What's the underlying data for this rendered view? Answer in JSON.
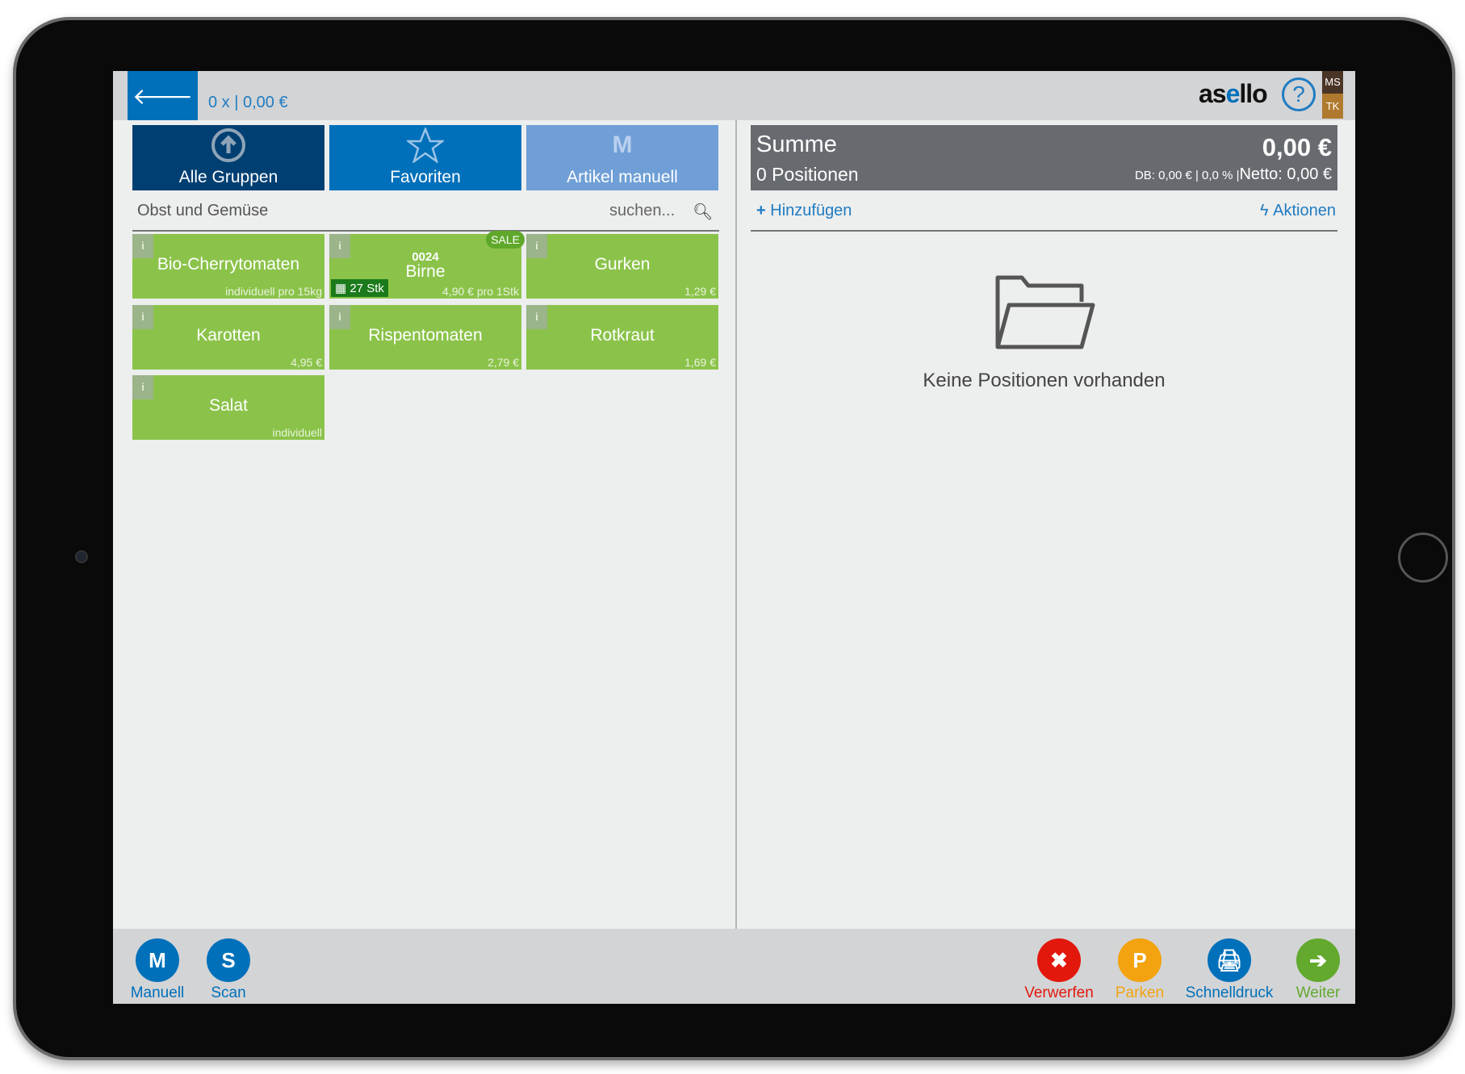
{
  "header": {
    "back_icon": "arrow-left-icon",
    "cart_summary": "0 x | 0,00 €",
    "logo": "asello",
    "help_icon": "question-circle-icon",
    "user_badges": [
      "MS",
      "TK"
    ]
  },
  "tabs": [
    {
      "label": "Alle Gruppen",
      "icon": "arrow-up-circle-icon",
      "color": "#003f72"
    },
    {
      "label": "Favoriten",
      "icon": "star-icon",
      "color": "#0070ba"
    },
    {
      "label": "Artikel manuell",
      "icon": "M",
      "color": "#6f9fd6"
    }
  ],
  "group": {
    "title": "Obst und Gemüse",
    "search_placeholder": "suchen..."
  },
  "products": [
    {
      "name": "Bio-Cherrytomaten",
      "price": "individuell pro 15kg"
    },
    {
      "code": "0024",
      "name": "Birne",
      "price": "4,90 € pro 1Stk",
      "badge": "SALE",
      "stock": "27 Stk"
    },
    {
      "name": "Gurken",
      "price": "1,29 €"
    },
    {
      "name": "Karotten",
      "price": "4,95 €"
    },
    {
      "name": "Rispentomaten",
      "price": "2,79 €"
    },
    {
      "name": "Rotkraut",
      "price": "1,69 €"
    },
    {
      "name": "Salat",
      "price": "individuell"
    }
  ],
  "summary": {
    "title": "Summe",
    "total": "0,00 €",
    "positions": "0 Positionen",
    "details": "DB: 0,00 € | 0,0 % |",
    "netto": "Netto: 0,00 €"
  },
  "actions": {
    "add": "Hinzufügen",
    "more": "Aktionen"
  },
  "empty": {
    "text": "Keine Positionen vorhanden",
    "icon": "folder-open-icon"
  },
  "bottom": {
    "left": [
      {
        "letter": "M",
        "label": "Manuell",
        "color": "#0070ba"
      },
      {
        "letter": "S",
        "label": "Scan",
        "color": "#0070ba"
      }
    ],
    "right": [
      {
        "letter": "✖",
        "label": "Verwerfen",
        "color": "#e2180d"
      },
      {
        "letter": "P",
        "label": "Parken",
        "color": "#f2a30f"
      },
      {
        "letter": "",
        "label": "Schnelldruck",
        "color": "#0070ba"
      },
      {
        "letter": "➔",
        "label": "Weiter",
        "color": "#62a92e"
      }
    ]
  }
}
